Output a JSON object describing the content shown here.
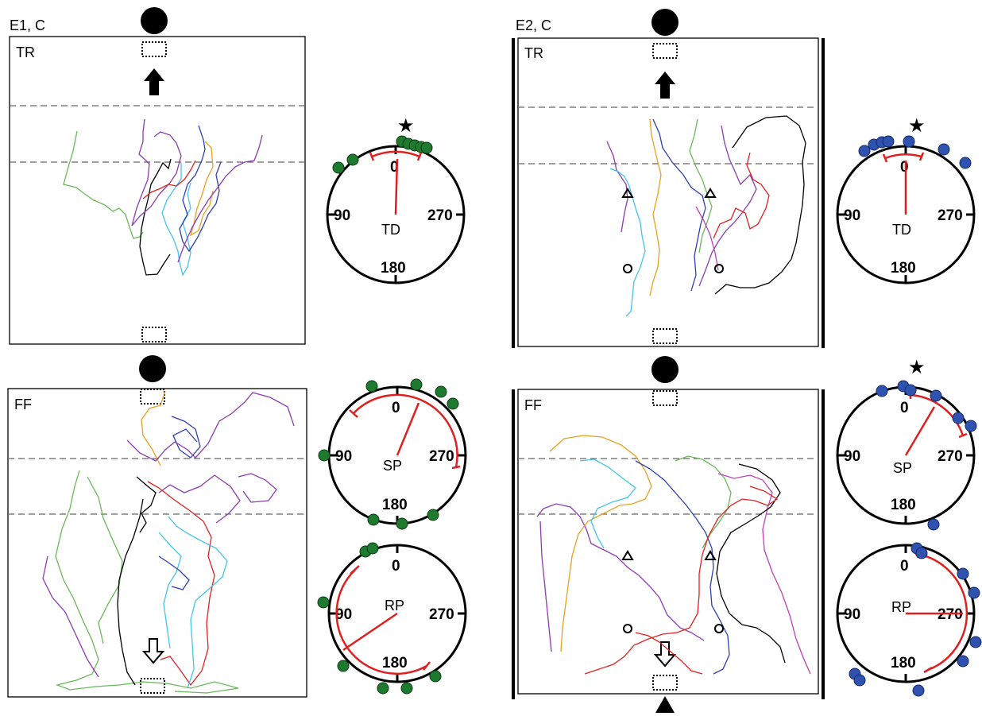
{
  "experiments": [
    {
      "id": "E1",
      "header": "E1, C",
      "dot_color": "#1e7a2e"
    },
    {
      "id": "E2",
      "header": "E2, C",
      "dot_color": "#2f52b0"
    }
  ],
  "conditions": {
    "training": "TR",
    "free_flight": "FF"
  },
  "circular_plots": {
    "tick_labels": {
      "top": "0",
      "left": "90",
      "right": "270",
      "bottom": "180"
    },
    "labels": {
      "td": "TD",
      "sp": "SP",
      "rp": "RP"
    },
    "significance_marker": "★",
    "mean_vector_color": "#e02020"
  },
  "track_colors": [
    "#000000",
    "#2f3fb0",
    "#e8a020",
    "#44c4ec",
    "#8a3cb0",
    "#6ab85a",
    "#e02020",
    "#c040b0"
  ],
  "markers": {
    "light_source": "filled-circle",
    "release_box": "dotted-rectangle",
    "heading_arrow": "filled-up-arrow",
    "release_arrow": "open-down-arrow",
    "exit_marker": "filled-triangle",
    "start_point": "open-circle",
    "turn_point": "open-triangle"
  }
}
